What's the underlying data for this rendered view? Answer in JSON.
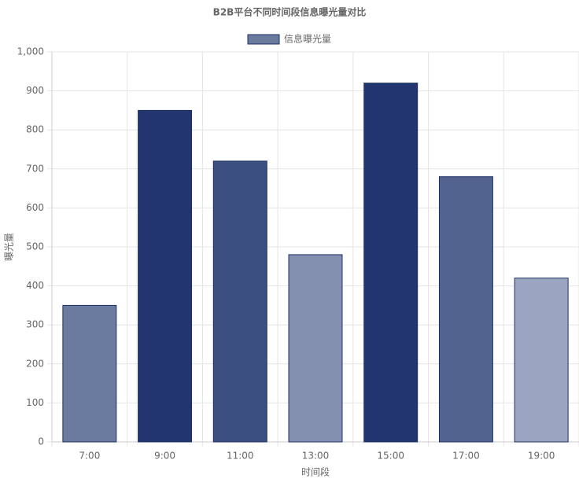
{
  "chart_data": {
    "type": "bar",
    "title": "B2B平台不同时间段信息曝光量对比",
    "categories": [
      "7:00",
      "9:00",
      "11:00",
      "13:00",
      "15:00",
      "17:00",
      "19:00"
    ],
    "series": [
      {
        "name": "信息曝光量",
        "color": "#6b7a9f",
        "border_color": "#1e2f66",
        "values": [
          350,
          850,
          720,
          480,
          920,
          680,
          420
        ],
        "colors": [
          "#6b7a9f",
          "#22356e",
          "#3a4e80",
          "#8390b0",
          "#22356e",
          "#52638f",
          "#9ba5c2"
        ]
      }
    ],
    "x_label": "时间段",
    "y_label": "曝光量",
    "ylim": [
      0,
      1000
    ],
    "yticks": [
      0,
      100,
      200,
      300,
      400,
      500,
      600,
      700,
      800,
      900,
      {
        "value": 1000,
        "label": "1,000"
      }
    ],
    "grid": true,
    "legend": "top"
  }
}
